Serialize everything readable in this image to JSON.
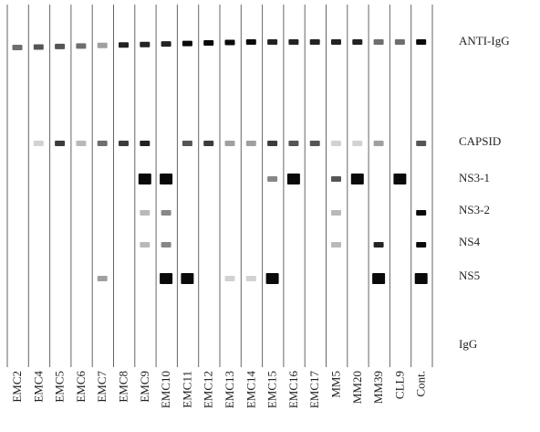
{
  "strips": [
    "EMC2",
    "EMC4",
    "EMC5",
    "EMC6",
    "EMC7",
    "EMC8",
    "EMC9",
    "EMC10",
    "EMC11",
    "EMC12",
    "EMC13",
    "EMC14",
    "EMC15",
    "EMC16",
    "EMC17",
    "MM5",
    "MM20",
    "MM39",
    "CLL9",
    "Cont."
  ],
  "bands": [
    "ANTI-IgG",
    "CAPSID",
    "NS3-1",
    "NS3-2",
    "NS4",
    "NS5",
    "IgG"
  ]
}
